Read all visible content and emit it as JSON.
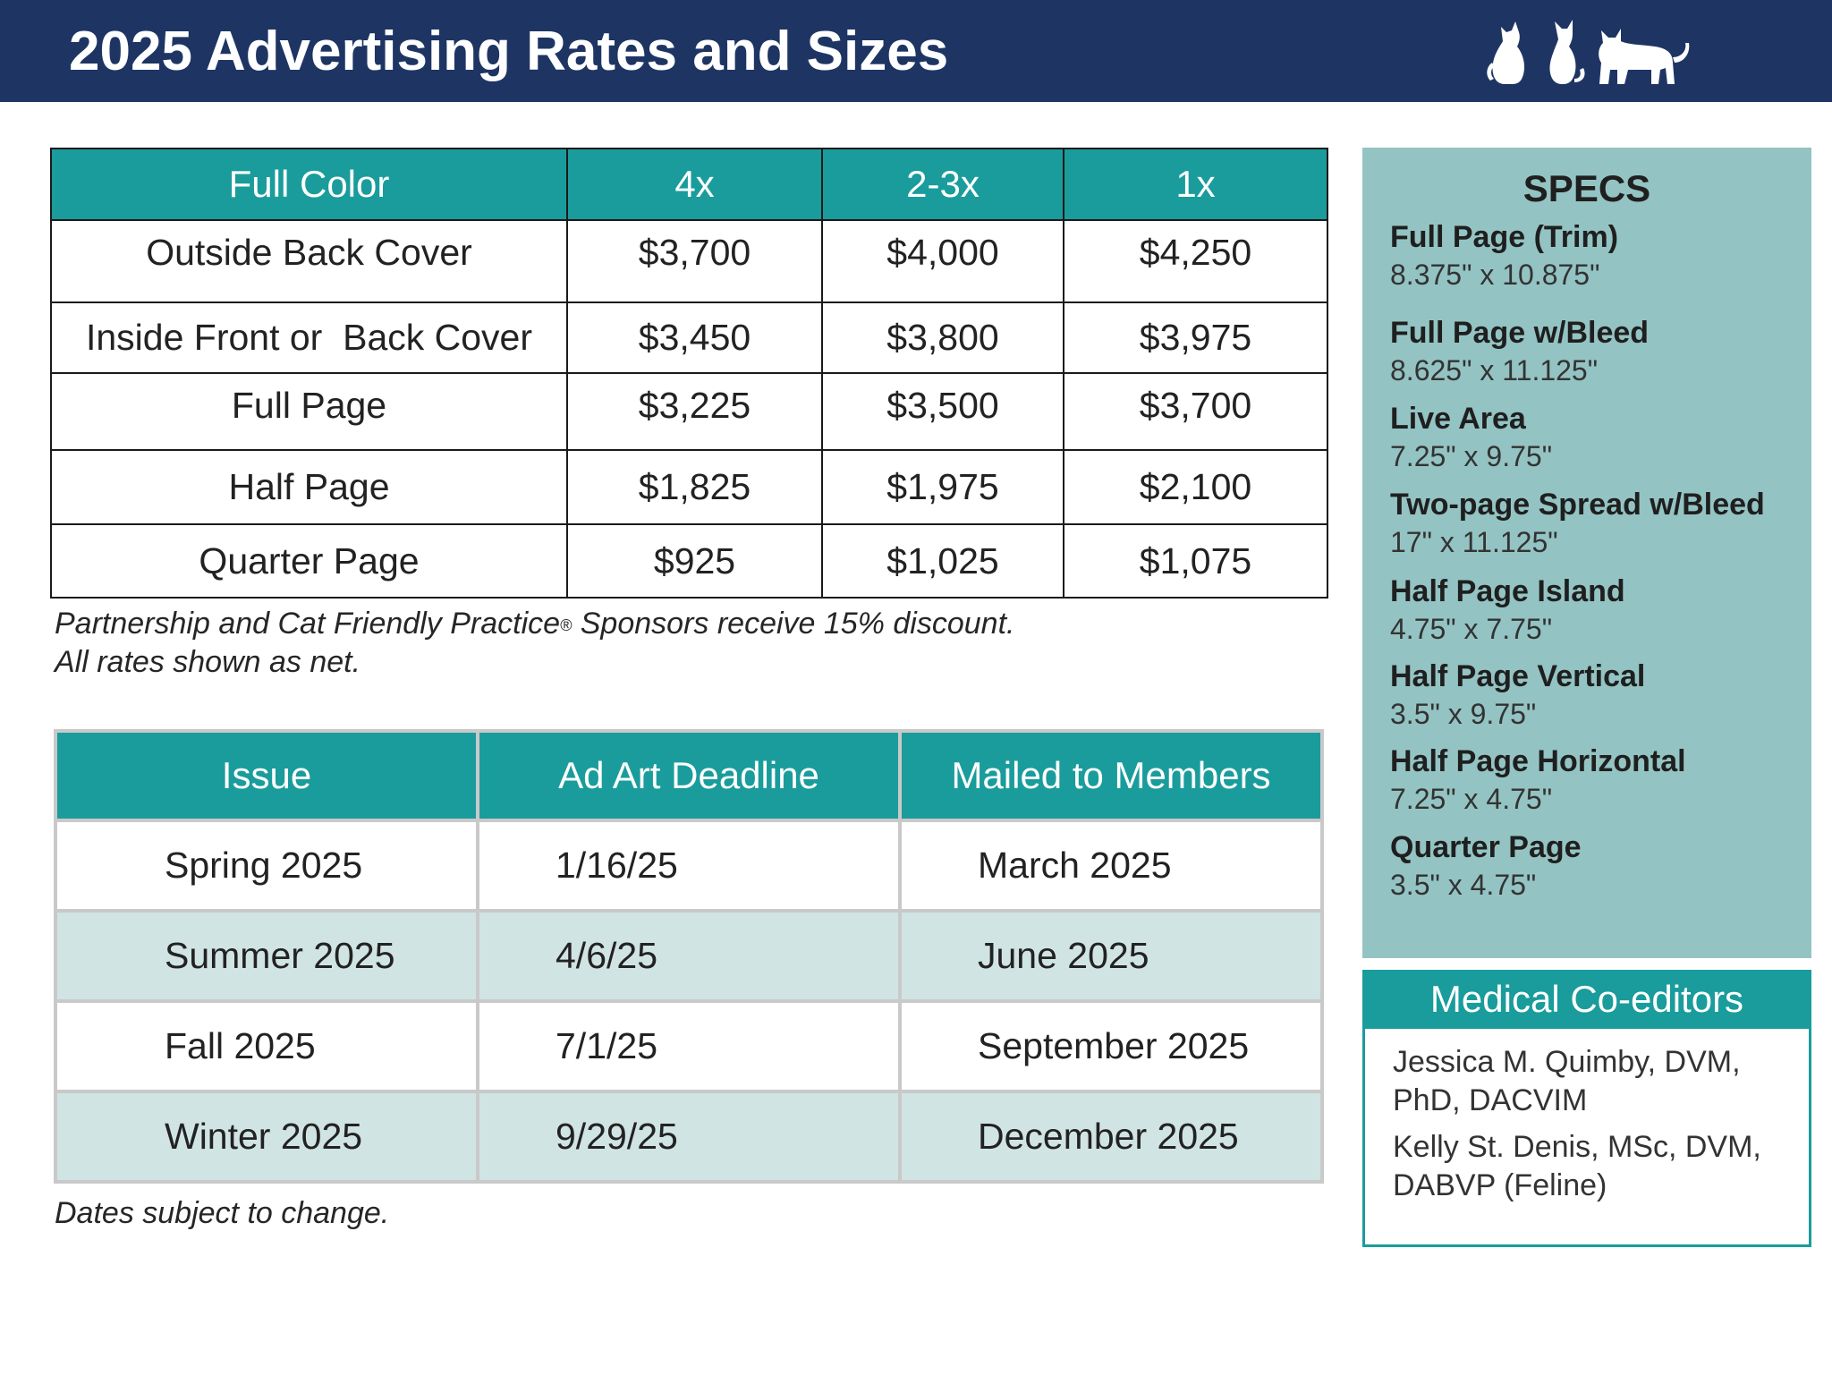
{
  "header": {
    "title": "2025 Advertising Rates and Sizes",
    "bg_color": "#1e3564",
    "logo_icon": "three-cats-silhouette-icon"
  },
  "rates": {
    "columns": [
      "Full Color",
      "4x",
      "2-3x",
      "1x"
    ],
    "rows": [
      {
        "label": "Outside Back Cover",
        "values": [
          "$3,700",
          "$4,000",
          "$4,250"
        ]
      },
      {
        "label": "Inside Front or  Back Cover",
        "values": [
          "$3,450",
          "$3,800",
          "$3,975"
        ]
      },
      {
        "label": "Full Page",
        "values": [
          "$3,225",
          "$3,500",
          "$3,700"
        ]
      },
      {
        "label": "Half Page",
        "values": [
          "$1,825",
          "$1,975",
          "$2,100"
        ]
      },
      {
        "label": "Quarter Page",
        "values": [
          "$925",
          "$1,025",
          "$1,075"
        ]
      }
    ],
    "note_line1_a": "Partnership and Cat Friendly Practice",
    "note_reg": "®",
    "note_line1_b": " Sponsors receive 15% discount.",
    "note_line2": "All rates shown as net.",
    "header_color": "#1a9c9c"
  },
  "schedule": {
    "columns": [
      "Issue",
      "Ad Art Deadline",
      "Mailed to Members"
    ],
    "rows": [
      [
        "Spring 2025",
        "1/16/25",
        "March 2025"
      ],
      [
        "Summer 2025",
        "4/6/25",
        "June 2025"
      ],
      [
        "Fall 2025",
        "7/1/25",
        "September 2025"
      ],
      [
        "Winter 2025",
        "9/29/25",
        "December 2025"
      ]
    ],
    "note": "Dates subject to change.",
    "alt_row_color": "#d0e4e3"
  },
  "specs": {
    "title": "SPECS",
    "items": [
      {
        "label": "Full Page (Trim)",
        "value": "8.375\" x 10.875\""
      },
      {
        "label": "Full Page w/Bleed",
        "value": "8.625\" x 11.125\""
      },
      {
        "label": "Live Area",
        "value": "7.25\" x 9.75\""
      },
      {
        "label": "Two-page Spread w/Bleed",
        "value": "17\" x 11.125\""
      },
      {
        "label": "Half Page Island",
        "value": "4.75\" x 7.75\""
      },
      {
        "label": "Half Page Vertical",
        "value": "3.5\" x 9.75\""
      },
      {
        "label": "Half Page Horizontal",
        "value": "7.25\" x 4.75\""
      },
      {
        "label": "Quarter Page",
        "value": "3.5\" x 4.75\""
      }
    ],
    "bg_color": "#94c3c3"
  },
  "editors": {
    "title": "Medical Co-editors",
    "names": [
      "Jessica M. Quimby, DVM, PhD, DACVIM",
      "Kelly St. Denis, MSc, DVM, DABVP (Feline)"
    ]
  }
}
